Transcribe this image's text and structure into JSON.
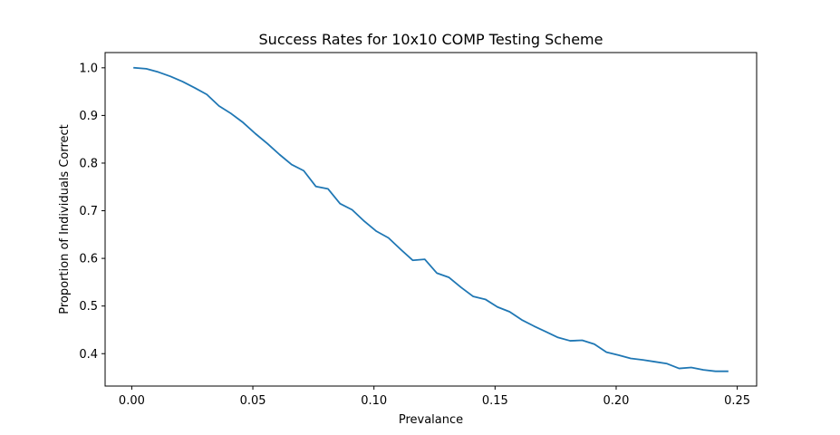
{
  "chart_data": {
    "type": "line",
    "title": "Success Rates for 10x10 COMP Testing Scheme",
    "xlabel": "Prevalance",
    "ylabel": "Proportion of Individuals Correct",
    "xlim": [
      -0.011,
      0.258
    ],
    "ylim": [
      0.332,
      1.032
    ],
    "xticks": [
      0.0,
      0.05,
      0.1,
      0.15,
      0.2,
      0.25
    ],
    "xtick_labels": [
      "0.00",
      "0.05",
      "0.10",
      "0.15",
      "0.20",
      "0.25"
    ],
    "yticks": [
      0.4,
      0.5,
      0.6,
      0.7,
      0.8,
      0.9,
      1.0
    ],
    "ytick_labels": [
      "0.4",
      "0.5",
      "0.6",
      "0.7",
      "0.8",
      "0.9",
      "1.0"
    ],
    "grid": false,
    "series": [
      {
        "color": "#1f77b4",
        "x": [
          0.001,
          0.006,
          0.011,
          0.016,
          0.021,
          0.026,
          0.031,
          0.036,
          0.041,
          0.046,
          0.051,
          0.056,
          0.061,
          0.066,
          0.071,
          0.076,
          0.081,
          0.086,
          0.091,
          0.096,
          0.101,
          0.106,
          0.111,
          0.116,
          0.121,
          0.126,
          0.131,
          0.136,
          0.141,
          0.146,
          0.151,
          0.156,
          0.161,
          0.166,
          0.171,
          0.176,
          0.181,
          0.186,
          0.191,
          0.196,
          0.201,
          0.206,
          0.211,
          0.216,
          0.221,
          0.226,
          0.231,
          0.236,
          0.241,
          0.246
        ],
        "y": [
          1.0,
          0.998,
          0.991,
          0.982,
          0.971,
          0.958,
          0.944,
          0.92,
          0.904,
          0.885,
          0.862,
          0.841,
          0.818,
          0.797,
          0.784,
          0.751,
          0.746,
          0.715,
          0.702,
          0.678,
          0.657,
          0.643,
          0.619,
          0.596,
          0.598,
          0.569,
          0.56,
          0.539,
          0.52,
          0.514,
          0.498,
          0.488,
          0.471,
          0.458,
          0.446,
          0.434,
          0.427,
          0.428,
          0.42,
          0.403,
          0.397,
          0.39,
          0.387,
          0.383,
          0.379,
          0.369,
          0.371,
          0.366,
          0.363,
          0.363
        ]
      }
    ]
  }
}
